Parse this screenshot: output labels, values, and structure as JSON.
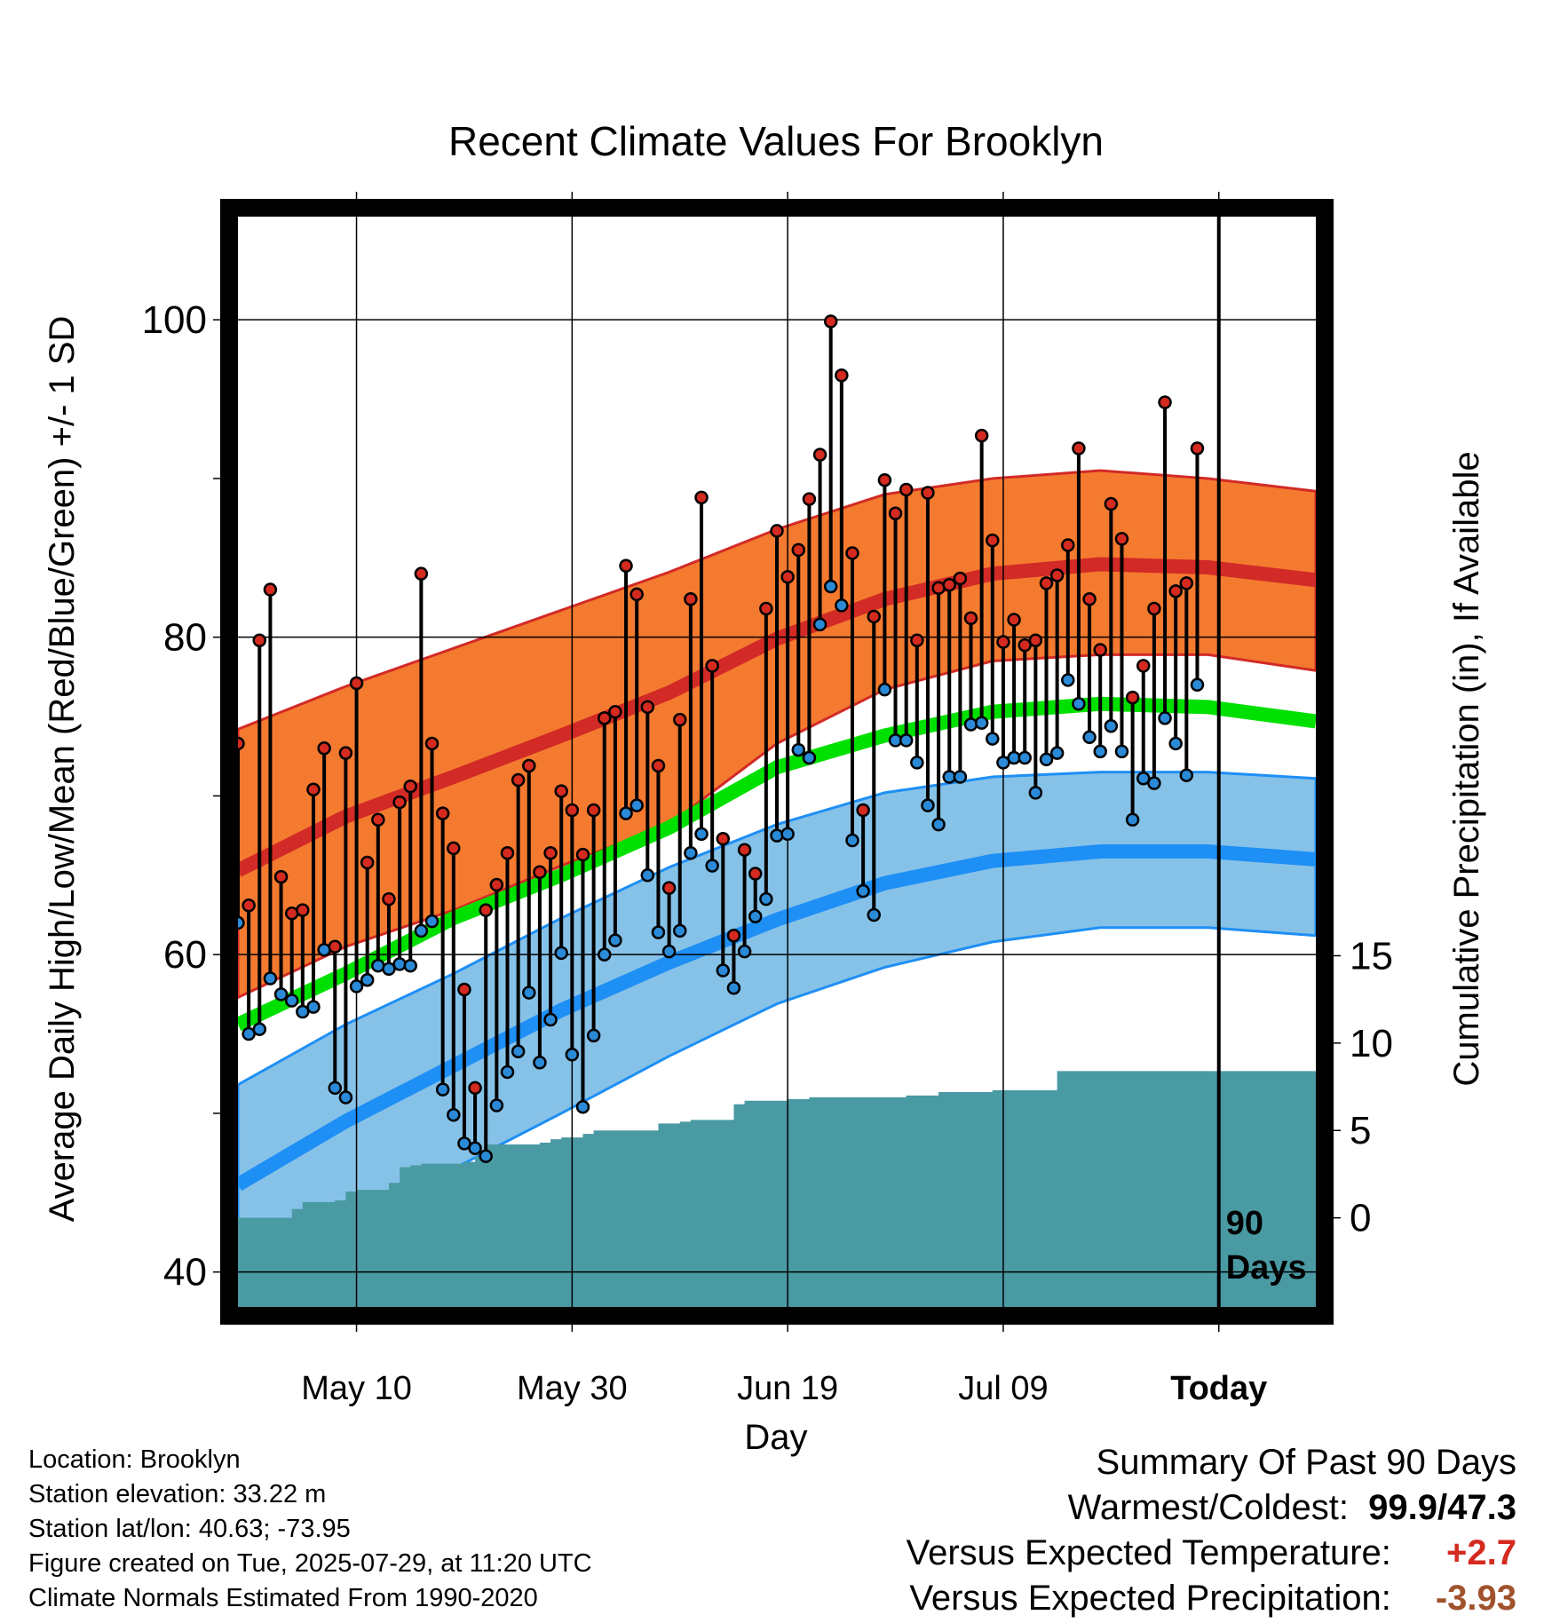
{
  "title": "Recent Climate Values For Brooklyn",
  "left_axis_label": "Average Daily High/Low/Mean (Red/Blue/Green) +/- 1 SD",
  "right_axis_label": "Cumulative Precipitation (in), If Available",
  "x_axis_label": "Day",
  "today_marker": {
    "line1": "90",
    "line2": "Days"
  },
  "footer": {
    "location": "Location: Brooklyn",
    "elevation": "Station elevation: 33.22 m",
    "latlon": "Station lat/lon: 40.63; -73.95",
    "created": "Figure created on Tue, 2025-07-29, at 11:20 UTC",
    "normals": "Climate Normals Estimated From 1990-2020"
  },
  "summary": {
    "heading": "Summary Of Past 90 Days",
    "warm_cold_label": "Warmest/Coldest:",
    "warm_cold_value": "99.9/47.3",
    "temp_label": "Versus Expected Temperature:",
    "temp_value": "+2.7",
    "precip_label": "Versus Expected Precipitation:",
    "precip_value": "-3.93"
  },
  "colors": {
    "high_band": "#f47a30",
    "high_line": "#d22a26",
    "low_band": "#86c2e8",
    "low_line": "#1e8ff5",
    "mean_line": "#00e000",
    "precip_fill": "#4a9aa4",
    "high_dot": "#d42a20",
    "low_dot": "#2a8ad8",
    "temp_value": "#d42a20",
    "precip_value": "#a0522d"
  },
  "chart_data": {
    "type": "line",
    "x_ticks": [
      {
        "day": 11,
        "label": "May 10"
      },
      {
        "day": 31,
        "label": "May 30"
      },
      {
        "day": 51,
        "label": "Jun 19"
      },
      {
        "day": 71,
        "label": "Jul 09"
      },
      {
        "day": 91,
        "label": "Today"
      }
    ],
    "xlim": [
      0,
      100
    ],
    "ylim_left": [
      37.8,
      106.5
    ],
    "yticks_left": [
      40,
      60,
      80,
      100
    ],
    "yticks_left_minor": [
      50,
      70,
      90
    ],
    "ylim_right": [
      -5.1,
      57.3
    ],
    "yticks_right": [
      0,
      5,
      10,
      15
    ],
    "normals": {
      "days": [
        0,
        10,
        20,
        30,
        40,
        50,
        60,
        70,
        80,
        90,
        100
      ],
      "high_mean": [
        65.3,
        68.7,
        71.2,
        73.8,
        76.5,
        79.9,
        82.4,
        84.0,
        84.6,
        84.4,
        83.6
      ],
      "high_upper": [
        74.2,
        76.9,
        79.3,
        81.7,
        84.1,
        86.8,
        89.0,
        90.0,
        90.5,
        90.0,
        89.2
      ],
      "high_lower": [
        57.3,
        60.5,
        62.8,
        65.6,
        68.2,
        73.3,
        76.7,
        78.5,
        78.9,
        78.9,
        77.9
      ],
      "mean": [
        55.6,
        58.8,
        62.3,
        65.0,
        68.0,
        71.8,
        73.8,
        75.3,
        75.8,
        75.6,
        74.7
      ],
      "low_mean": [
        45.5,
        49.5,
        53.0,
        56.5,
        59.5,
        62.2,
        64.5,
        65.9,
        66.5,
        66.5,
        66.0
      ],
      "low_upper": [
        51.8,
        55.6,
        58.8,
        62.3,
        65.5,
        68.2,
        70.2,
        71.2,
        71.5,
        71.5,
        71.1
      ],
      "low_lower": [
        39.6,
        43.4,
        46.5,
        50.0,
        53.6,
        56.9,
        59.2,
        60.8,
        61.7,
        61.7,
        61.2
      ]
    },
    "daily_high": [
      73.3,
      63.1,
      79.8,
      83.0,
      64.9,
      62.6,
      62.8,
      70.4,
      73.0,
      60.5,
      72.7,
      77.1,
      65.8,
      68.5,
      63.5,
      69.6,
      70.6,
      84.0,
      73.3,
      68.9,
      66.7,
      57.8,
      51.6,
      62.8,
      64.4,
      66.4,
      71.0,
      71.9,
      65.2,
      66.4,
      70.3,
      69.1,
      66.3,
      69.1,
      74.9,
      75.3,
      84.5,
      82.7,
      75.6,
      71.9,
      64.2,
      74.8,
      82.4,
      88.8,
      78.2,
      67.3,
      61.2,
      66.6,
      65.1,
      81.8,
      86.7,
      83.8,
      85.5,
      88.7,
      91.5,
      99.9,
      96.5,
      85.3,
      69.1,
      81.3,
      89.9,
      87.8,
      89.3,
      79.8,
      89.1,
      83.1,
      83.3,
      83.7,
      81.2,
      92.7,
      86.1,
      79.7,
      81.1,
      79.5,
      79.8,
      83.4,
      83.9,
      85.8,
      91.9,
      82.4,
      79.2,
      88.4,
      86.2,
      76.2,
      78.2,
      81.8,
      94.8,
      82.9,
      83.4,
      91.9
    ],
    "daily_low": [
      62.0,
      55.0,
      55.3,
      58.5,
      57.5,
      57.1,
      56.4,
      56.7,
      60.3,
      51.6,
      51.0,
      58.0,
      58.4,
      59.3,
      59.1,
      59.4,
      59.3,
      61.5,
      62.1,
      51.5,
      49.9,
      48.1,
      47.8,
      47.3,
      50.5,
      52.6,
      53.9,
      57.6,
      53.2,
      55.9,
      60.1,
      53.7,
      50.4,
      54.9,
      60.0,
      60.9,
      68.9,
      69.4,
      65.0,
      61.4,
      60.2,
      61.5,
      66.4,
      67.6,
      65.6,
      59.0,
      57.9,
      60.2,
      62.4,
      63.5,
      67.5,
      67.6,
      72.9,
      72.4,
      80.8,
      83.2,
      82.0,
      67.2,
      64.0,
      62.5,
      76.7,
      73.5,
      73.5,
      72.1,
      69.4,
      68.2,
      71.2,
      71.2,
      74.5,
      74.6,
      73.6,
      72.1,
      72.4,
      72.4,
      70.2,
      72.3,
      72.7,
      77.3,
      75.8,
      73.7,
      72.8,
      74.4,
      72.8,
      68.5,
      71.1,
      70.8,
      74.9,
      73.3,
      71.3,
      77.0
    ],
    "precip_cumulative": [
      [
        0,
        0
      ],
      [
        4,
        0
      ],
      [
        5,
        0.5
      ],
      [
        6,
        0.9
      ],
      [
        7,
        0.9
      ],
      [
        8,
        0.9
      ],
      [
        9,
        1.0
      ],
      [
        10,
        1.5
      ],
      [
        11,
        1.6
      ],
      [
        12,
        1.6
      ],
      [
        13,
        1.6
      ],
      [
        14,
        2.0
      ],
      [
        15,
        2.9
      ],
      [
        16,
        3.0
      ],
      [
        17,
        3.1
      ],
      [
        18,
        3.1
      ],
      [
        19,
        3.1
      ],
      [
        20,
        3.1
      ],
      [
        21,
        3.2
      ],
      [
        22,
        3.5
      ],
      [
        23,
        4.2
      ],
      [
        24,
        4.2
      ],
      [
        25,
        4.2
      ],
      [
        26,
        4.2
      ],
      [
        27,
        4.2
      ],
      [
        28,
        4.3
      ],
      [
        29,
        4.5
      ],
      [
        30,
        4.6
      ],
      [
        31,
        4.6
      ],
      [
        32,
        4.8
      ],
      [
        33,
        5.0
      ],
      [
        34,
        5.0
      ],
      [
        35,
        5.0
      ],
      [
        36,
        5.0
      ],
      [
        37,
        5.0
      ],
      [
        38,
        5.0
      ],
      [
        39,
        5.4
      ],
      [
        40,
        5.4
      ],
      [
        41,
        5.5
      ],
      [
        42,
        5.6
      ],
      [
        43,
        5.6
      ],
      [
        44,
        5.6
      ],
      [
        45,
        5.6
      ],
      [
        46,
        6.5
      ],
      [
        47,
        6.7
      ],
      [
        48,
        6.7
      ],
      [
        49,
        6.7
      ],
      [
        50,
        6.7
      ],
      [
        51,
        6.8
      ],
      [
        52,
        6.8
      ],
      [
        53,
        6.9
      ],
      [
        54,
        6.9
      ],
      [
        55,
        6.9
      ],
      [
        56,
        6.9
      ],
      [
        57,
        6.9
      ],
      [
        58,
        6.9
      ],
      [
        59,
        6.9
      ],
      [
        60,
        6.9
      ],
      [
        61,
        6.9
      ],
      [
        62,
        7.0
      ],
      [
        63,
        7.0
      ],
      [
        64,
        7.0
      ],
      [
        65,
        7.2
      ],
      [
        66,
        7.2
      ],
      [
        67,
        7.2
      ],
      [
        68,
        7.2
      ],
      [
        69,
        7.2
      ],
      [
        70,
        7.3
      ],
      [
        71,
        7.3
      ],
      [
        72,
        7.3
      ],
      [
        73,
        7.3
      ],
      [
        74,
        7.3
      ],
      [
        75,
        7.3
      ],
      [
        76,
        8.4
      ],
      [
        77,
        8.4
      ],
      [
        78,
        8.4
      ],
      [
        79,
        8.4
      ],
      [
        80,
        8.4
      ],
      [
        81,
        8.4
      ],
      [
        82,
        8.4
      ],
      [
        83,
        8.4
      ],
      [
        84,
        8.4
      ],
      [
        85,
        8.4
      ],
      [
        86,
        8.4
      ],
      [
        87,
        8.4
      ],
      [
        88,
        8.4
      ],
      [
        89,
        8.4
      ],
      [
        90,
        8.4
      ],
      [
        91,
        8.4
      ],
      [
        100,
        8.4
      ]
    ]
  }
}
